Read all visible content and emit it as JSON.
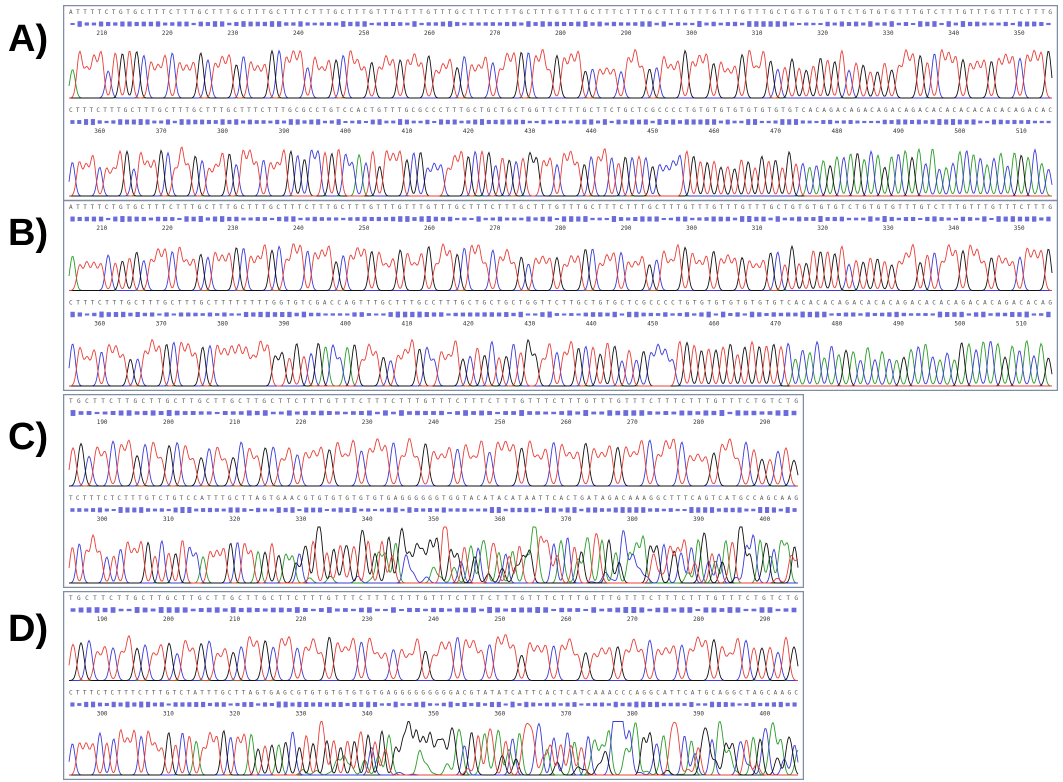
{
  "panels": [
    {
      "label": "A)",
      "rows": [
        {
          "sequence": "ATTTTCTGTGCTTTCTTTGCTTTGCTTTGCTTTCTTTGCTTTGTTTGTTTGTTTGCTTTCTTTGCTTTGTTTGCTTTCTTTGCTTTGTTTGTTTGTTTGCTGTGTGTGTCTGTGTGTTTGTCTTTGTTTGTTTCTTTG",
          "positions": [
            210,
            220,
            230,
            240,
            250,
            260,
            270,
            280,
            290,
            300,
            310,
            320,
            330,
            340,
            350
          ]
        },
        {
          "sequence": "CTTTCTTTGCTTTGCTTTGCTTTGCTTTCTTTGCGCCTGTCCACTGTTTGCGCCCTTTGCTGCTGCTGGTTCTTTGCTTCTGCTCGCCCCTGTGTGTGTGTGTGTGTCACAGACAGACAGACAGACACACACACACACAGACAC",
          "positions": [
            360,
            370,
            380,
            390,
            400,
            410,
            420,
            430,
            440,
            450,
            460,
            470,
            480,
            490,
            500,
            510
          ]
        }
      ]
    },
    {
      "label": "B)",
      "rows": [
        {
          "sequence": "ATTTTCTGTGCTTTCTTTGCTTTGCTTTGCTTTCTTTGCTTTGTTTGTTTGTTTGCTTTCTTTGCTTTGTTTGCTTTCTTTGCTTTGTTTGTTTGTTTGCTGTGTGTGTCTGTGTGTTTGTCTTTGTTTGTTTCTTTG",
          "positions": [
            210,
            220,
            230,
            240,
            250,
            260,
            270,
            280,
            290,
            300,
            310,
            320,
            330,
            340,
            350
          ]
        },
        {
          "sequence": "CTTTCTTTGCTTTGCTTTGCTTTTTTTTGGTGTCGACCAGTTTGCTTTGCCTTTGCTGCTGCTGGTTCTTGCTGTGCTCGCCCCTGTGTGTGTGTGTGTCACACACAGACACACAGACACACAGACACAGACACAG",
          "positions": [
            360,
            370,
            380,
            390,
            400,
            410,
            420,
            430,
            440,
            450,
            460,
            470,
            480,
            490,
            500,
            510
          ]
        }
      ]
    },
    {
      "label": "C)",
      "rows": [
        {
          "sequence": "TGCTTCTTGCTTGCTTGCTTGCTTGCTTCTTTGTTTCTTTCTTTGTTTCTTTCTTTGTTTCTTTGTTTGTTTCTTTCTTTGTTTCTGTCTG",
          "positions": [
            190,
            200,
            210,
            220,
            230,
            240,
            250,
            260,
            270,
            280,
            290
          ]
        },
        {
          "sequence": "TCTTTCTCTTTGTCTGTCCATTTGCTTAGTGAACGTGTGTGTGTGTGAGGGGGGTGGTACATACATAATTCACTGATAGACAAAGGCTTTCAGTCATGCCAGCAAG",
          "positions": [
            300,
            310,
            320,
            330,
            340,
            350,
            360,
            370,
            380,
            390,
            400
          ]
        }
      ]
    },
    {
      "label": "D)",
      "rows": [
        {
          "sequence": "TGCTTCTTGCTTGCTTGCTTGCTTGCTTCTTTGTTTCTTTCTTTGTTTCTTTCTTTGTTTCTTTGTTTGTTTCTTTCTTTGTTTCTGTCTG",
          "positions": [
            190,
            200,
            210,
            220,
            230,
            240,
            250,
            260,
            270,
            280,
            290
          ]
        },
        {
          "sequence": "CTTTCTCTTTCTTTGTCTATTTGCTTAGTGAGCGTGTGTGTGTGTGAGGGGGGGGGACGTATATCATTCACTCATCAAACCCAGGCATTCATGCAGGCTAGCAAGC",
          "positions": [
            300,
            310,
            320,
            330,
            340,
            350,
            360,
            370,
            380,
            390,
            400
          ]
        }
      ]
    }
  ]
}
